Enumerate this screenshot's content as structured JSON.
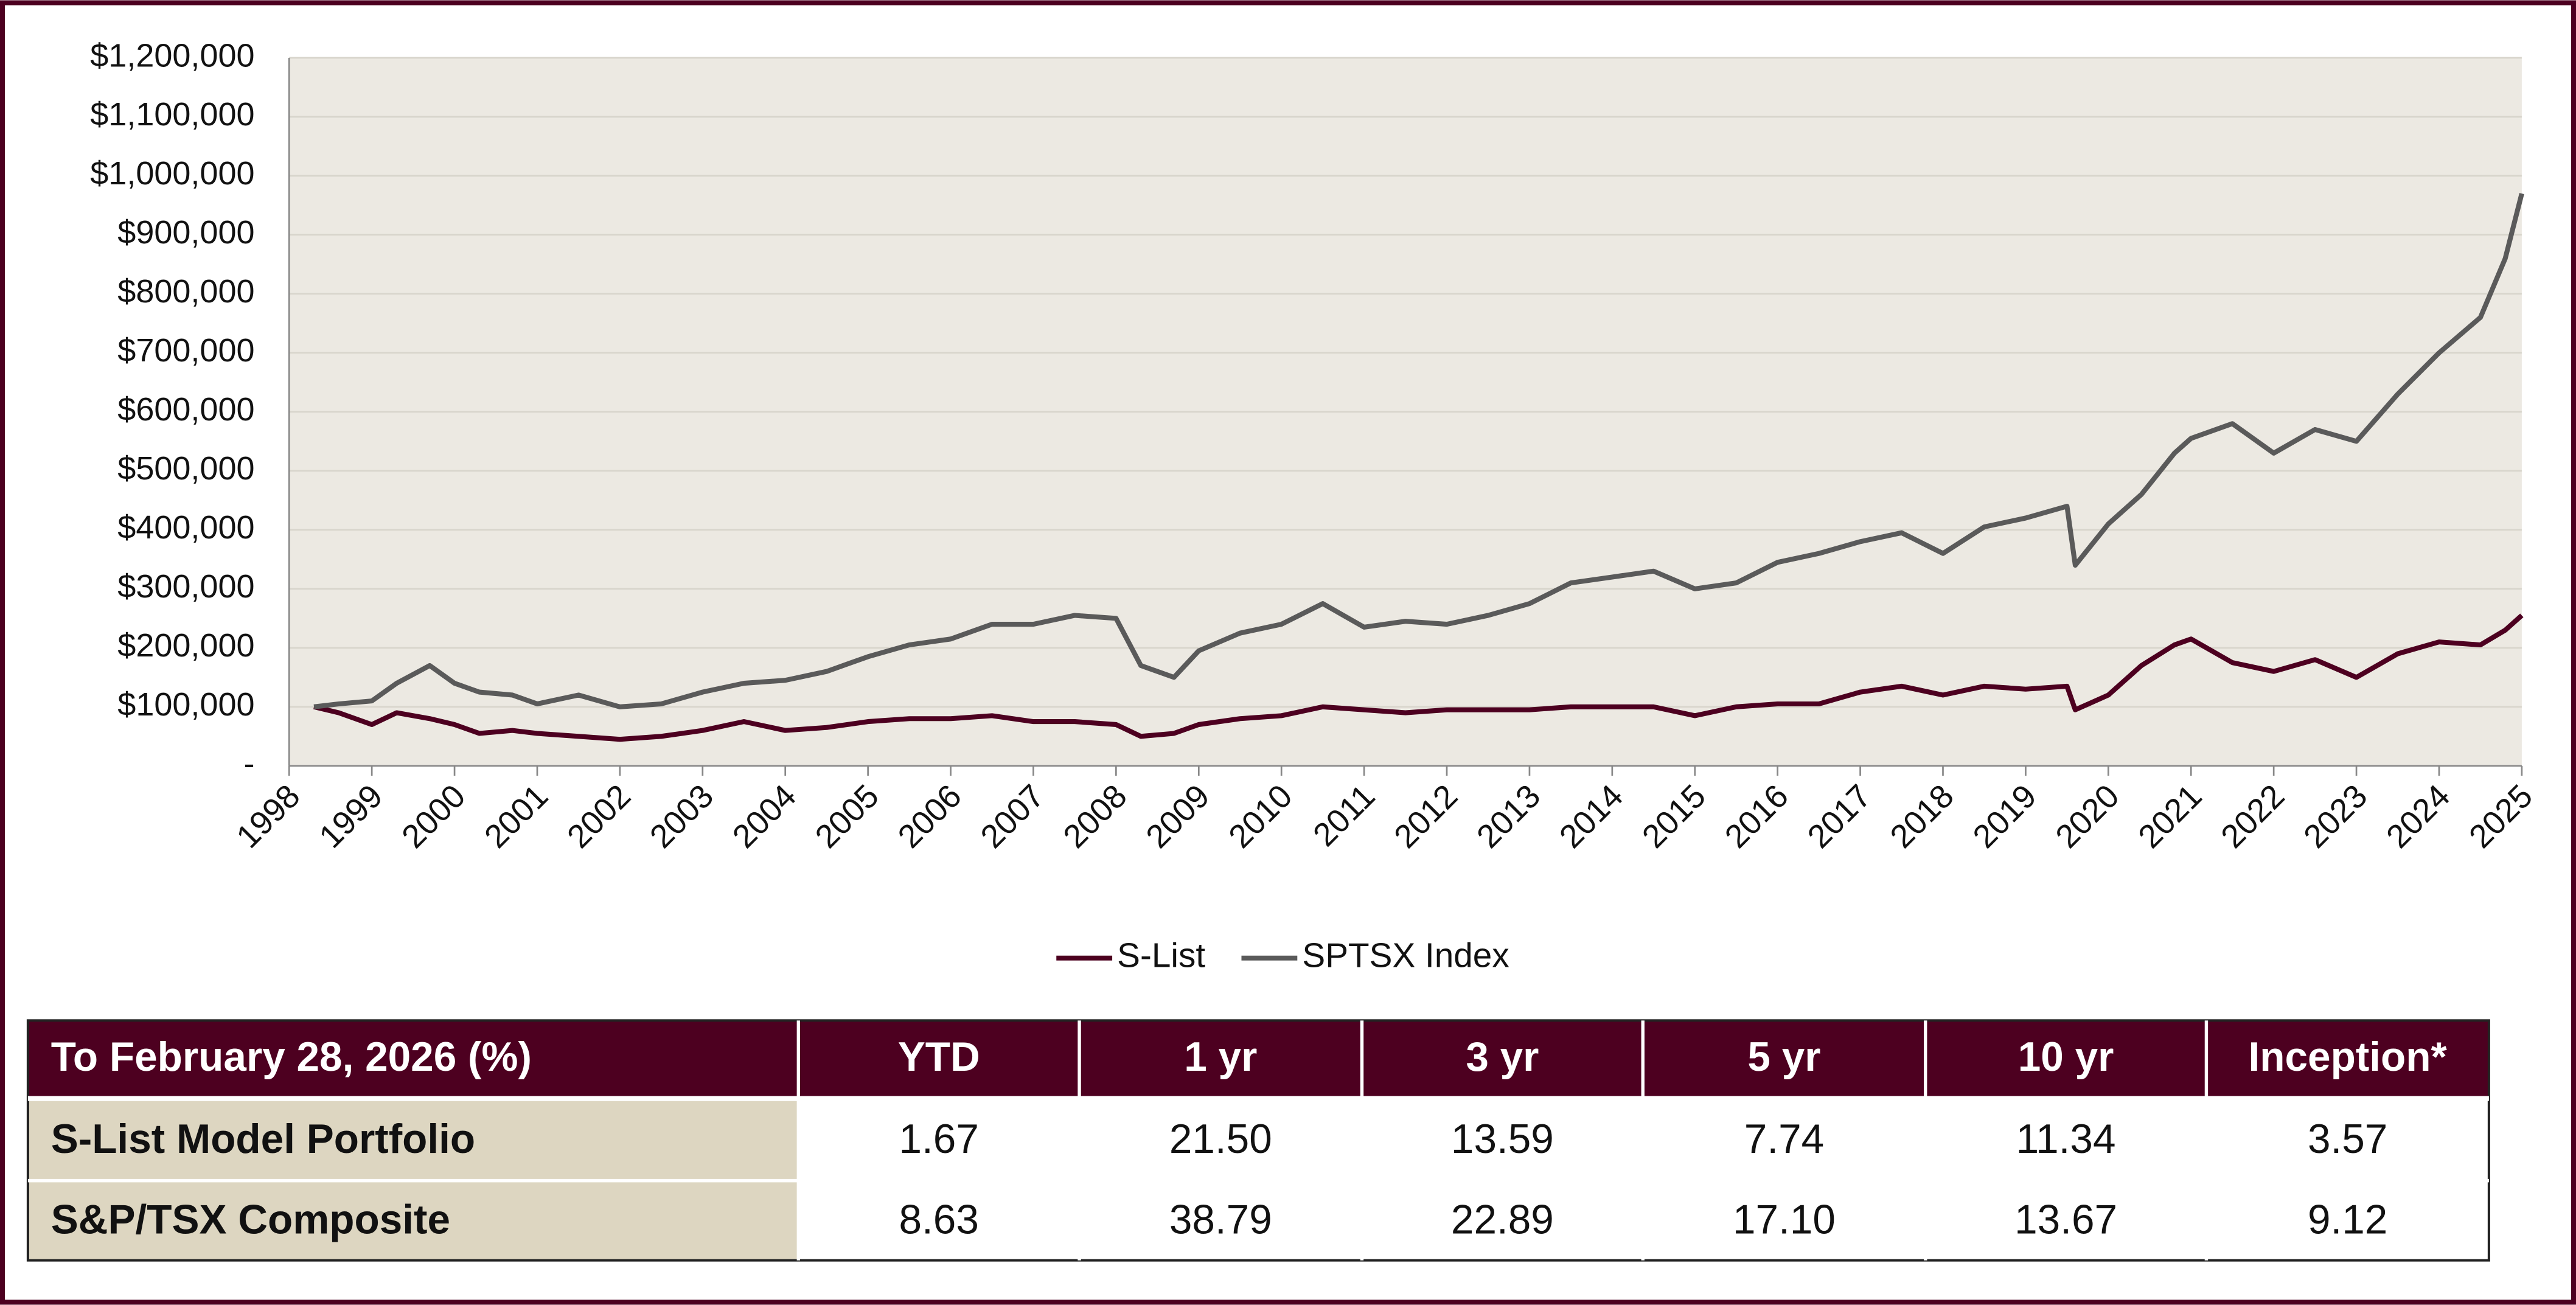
{
  "chart_data": {
    "type": "line",
    "x": [
      1998.3,
      1998.6,
      1999.0,
      1999.3,
      1999.7,
      2000.0,
      2000.3,
      2000.7,
      2001.0,
      2001.5,
      2002.0,
      2002.5,
      2003.0,
      2003.5,
      2004.0,
      2004.5,
      2005.0,
      2005.5,
      2006.0,
      2006.5,
      2007.0,
      2007.5,
      2008.0,
      2008.3,
      2008.7,
      2009.0,
      2009.5,
      2010.0,
      2010.5,
      2011.0,
      2011.5,
      2012.0,
      2012.5,
      2013.0,
      2013.5,
      2014.0,
      2014.5,
      2015.0,
      2015.5,
      2016.0,
      2016.5,
      2017.0,
      2017.5,
      2018.0,
      2018.5,
      2019.0,
      2019.5,
      2019.6,
      2020.0,
      2020.4,
      2020.8,
      2021.0,
      2021.5,
      2022.0,
      2022.5,
      2023.0,
      2023.5,
      2024.0,
      2024.5,
      2024.8,
      2025.0
    ],
    "series": [
      {
        "name": "S-List",
        "color": "#4d0020",
        "values": [
          100000,
          90000,
          70000,
          90000,
          80000,
          70000,
          55000,
          60000,
          55000,
          50000,
          45000,
          50000,
          60000,
          75000,
          60000,
          65000,
          75000,
          80000,
          80000,
          85000,
          75000,
          75000,
          70000,
          50000,
          55000,
          70000,
          80000,
          85000,
          100000,
          95000,
          90000,
          95000,
          95000,
          95000,
          100000,
          100000,
          100000,
          85000,
          100000,
          105000,
          105000,
          125000,
          135000,
          120000,
          135000,
          130000,
          135000,
          95000,
          120000,
          170000,
          205000,
          215000,
          175000,
          160000,
          180000,
          150000,
          190000,
          210000,
          205000,
          230000,
          255000
        ]
      },
      {
        "name": "SPTSX Index",
        "color": "#5a5a5a",
        "values": [
          100000,
          105000,
          110000,
          140000,
          170000,
          140000,
          125000,
          120000,
          105000,
          120000,
          100000,
          105000,
          125000,
          140000,
          145000,
          160000,
          185000,
          205000,
          215000,
          240000,
          240000,
          255000,
          250000,
          170000,
          150000,
          195000,
          225000,
          240000,
          275000,
          235000,
          245000,
          240000,
          255000,
          275000,
          310000,
          320000,
          330000,
          300000,
          310000,
          345000,
          360000,
          380000,
          395000,
          360000,
          405000,
          420000,
          440000,
          340000,
          410000,
          460000,
          530000,
          555000,
          580000,
          530000,
          570000,
          550000,
          630000,
          700000,
          760000,
          860000,
          970000
        ]
      }
    ],
    "xlim": [
      1998,
      2025
    ],
    "ylim": [
      0,
      1200000
    ],
    "xticks": [
      1998,
      1999,
      2000,
      2001,
      2002,
      2003,
      2004,
      2005,
      2006,
      2007,
      2008,
      2009,
      2010,
      2011,
      2012,
      2013,
      2014,
      2015,
      2016,
      2017,
      2018,
      2019,
      2020,
      2021,
      2022,
      2023,
      2024,
      2025
    ],
    "yticks": [
      {
        "value": 0,
        "label": "-"
      },
      {
        "value": 100000,
        "label": "$100,000"
      },
      {
        "value": 200000,
        "label": "$200,000"
      },
      {
        "value": 300000,
        "label": "$300,000"
      },
      {
        "value": 400000,
        "label": "$400,000"
      },
      {
        "value": 500000,
        "label": "$500,000"
      },
      {
        "value": 600000,
        "label": "$600,000"
      },
      {
        "value": 700000,
        "label": "$700,000"
      },
      {
        "value": 800000,
        "label": "$800,000"
      },
      {
        "value": 900000,
        "label": "$900,000"
      },
      {
        "value": 1000000,
        "label": "$1,000,000"
      },
      {
        "value": 1100000,
        "label": "$1,100,000"
      },
      {
        "value": 1200000,
        "label": "$1,200,000"
      }
    ],
    "grid": true,
    "legend": "bottom"
  },
  "table": {
    "header": [
      "To February 28, 2026 (%)",
      "YTD",
      "1 yr",
      "3 yr",
      "5 yr",
      "10 yr",
      "Inception*"
    ],
    "rows": [
      [
        "S-List Model Portfolio",
        "1.67",
        "21.50",
        "13.59",
        "7.74",
        "11.34",
        "3.57"
      ],
      [
        "S&P/TSX Composite",
        "8.63",
        "38.79",
        "22.89",
        "17.10",
        "13.67",
        "9.12"
      ]
    ]
  }
}
